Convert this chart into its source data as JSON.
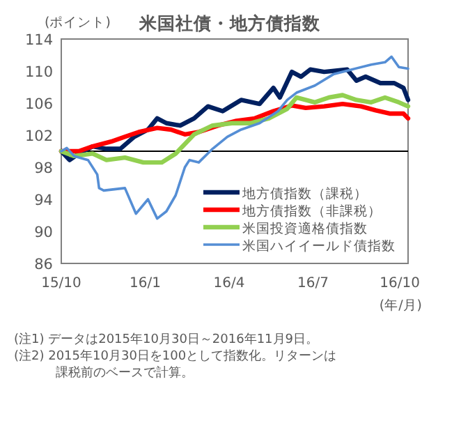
{
  "chart_data": {
    "type": "line",
    "title": "米国社債・地方債指数",
    "ylabel": "(ポイント)",
    "xlabel": "(年/月)",
    "xlim": [
      "2015-10-30",
      "2016-11-09"
    ],
    "xticks": [
      {
        "value": "2015-10-30",
        "label": "15/10"
      },
      {
        "value": "2016-01-29",
        "label": "16/1"
      },
      {
        "value": "2016-04-29",
        "label": "16/4"
      },
      {
        "value": "2016-07-29",
        "label": "16/7"
      },
      {
        "value": "2016-10-31",
        "label": "16/10"
      }
    ],
    "ylim": [
      86,
      114
    ],
    "yticks": [
      86,
      90,
      94,
      98,
      102,
      106,
      110,
      114
    ],
    "grid": false,
    "legend": "bottom right",
    "line_style": "solid",
    "marker": "none",
    "ref_lines": [
      {
        "axis": "y",
        "value": 100,
        "color": "#000000"
      }
    ],
    "series": [
      {
        "name": "地方債指数（課税）",
        "color": "#002060",
        "x": [
          "2015-10-30",
          "2015-11-08",
          "2015-11-18",
          "2015-12-03",
          "2015-12-18",
          "2016-01-02",
          "2016-01-17",
          "2016-02-01",
          "2016-02-11",
          "2016-02-21",
          "2016-03-07",
          "2016-03-22",
          "2016-04-06",
          "2016-04-22",
          "2016-05-12",
          "2016-06-01",
          "2016-06-16",
          "2016-06-23",
          "2016-07-06",
          "2016-07-16",
          "2016-07-26",
          "2016-08-10",
          "2016-09-04",
          "2016-09-14",
          "2016-09-24",
          "2016-10-10",
          "2016-10-25",
          "2016-11-04",
          "2016-11-09"
        ],
        "values": [
          100,
          98.9,
          99.7,
          100.6,
          100.3,
          100.3,
          101.8,
          102.7,
          104.1,
          103.5,
          103.2,
          104.1,
          105.6,
          105,
          106.4,
          105.9,
          107.9,
          106.7,
          109.9,
          109.3,
          110.2,
          109.9,
          110.2,
          108.8,
          109.3,
          108.5,
          108.5,
          107.9,
          106.4
        ]
      },
      {
        "name": "地方債指数（非課税）",
        "color": "#ff0000",
        "x": [
          "2015-10-30",
          "2015-11-18",
          "2015-12-03",
          "2015-12-23",
          "2016-01-07",
          "2016-01-22",
          "2016-02-11",
          "2016-02-26",
          "2016-03-12",
          "2016-03-27",
          "2016-04-17",
          "2016-05-07",
          "2016-05-27",
          "2016-06-16",
          "2016-07-06",
          "2016-07-21",
          "2016-08-10",
          "2016-08-30",
          "2016-09-19",
          "2016-10-05",
          "2016-10-20",
          "2016-11-04",
          "2016-11-09"
        ],
        "values": [
          100,
          100,
          100.6,
          101.2,
          101.8,
          102.4,
          102.9,
          102.7,
          102.1,
          102.4,
          103.2,
          103.8,
          104.1,
          105,
          105.7,
          105.4,
          105.6,
          105.9,
          105.6,
          105.1,
          104.7,
          104.7,
          104.1
        ]
      },
      {
        "name": "米国投資適格債指数",
        "color": "#92d050",
        "x": [
          "2015-10-30",
          "2015-11-13",
          "2015-12-03",
          "2015-12-18",
          "2016-01-07",
          "2016-01-27",
          "2016-02-16",
          "2016-03-02",
          "2016-03-22",
          "2016-04-11",
          "2016-05-02",
          "2016-05-22",
          "2016-06-11",
          "2016-07-01",
          "2016-07-11",
          "2016-07-31",
          "2016-08-15",
          "2016-08-30",
          "2016-09-14",
          "2016-09-30",
          "2016-10-15",
          "2016-10-30",
          "2016-11-09"
        ],
        "values": [
          100,
          99.4,
          99.7,
          98.9,
          99.2,
          98.6,
          98.6,
          99.7,
          102.1,
          103.2,
          103.5,
          103.5,
          104.1,
          105.3,
          106.7,
          106.1,
          106.7,
          107,
          106.4,
          106.1,
          106.7,
          106.1,
          105.6
        ]
      },
      {
        "name": "米国ハイイールド債指数",
        "color": "#558ed5",
        "x": [
          "2015-10-30",
          "2015-11-05",
          "2015-11-13",
          "2015-11-28",
          "2015-12-08",
          "2015-12-10",
          "2015-12-15",
          "2016-01-07",
          "2016-01-19",
          "2016-02-01",
          "2016-02-11",
          "2016-02-21",
          "2016-03-02",
          "2016-03-12",
          "2016-03-17",
          "2016-03-27",
          "2016-04-11",
          "2016-04-27",
          "2016-05-12",
          "2016-06-01",
          "2016-06-21",
          "2016-07-01",
          "2016-07-11",
          "2016-07-31",
          "2016-08-20",
          "2016-09-09",
          "2016-09-30",
          "2016-10-15",
          "2016-10-22",
          "2016-10-30",
          "2016-11-09"
        ],
        "values": [
          100,
          100.4,
          99.4,
          98.9,
          97.1,
          95.4,
          95.1,
          95.4,
          92.2,
          94,
          91.6,
          92.5,
          94.5,
          98,
          98.9,
          98.6,
          100.3,
          101.8,
          102.7,
          103.5,
          105,
          106.4,
          107.3,
          108.2,
          109.6,
          110.2,
          110.8,
          111.1,
          111.8,
          110.5,
          110.3
        ]
      }
    ],
    "annotations": [
      "(注1) データは2015年10月30日～2016年11月9日。",
      "(注2) 2015年10月30日を100として指数化。リターンは課税前のベースで計算。"
    ]
  }
}
